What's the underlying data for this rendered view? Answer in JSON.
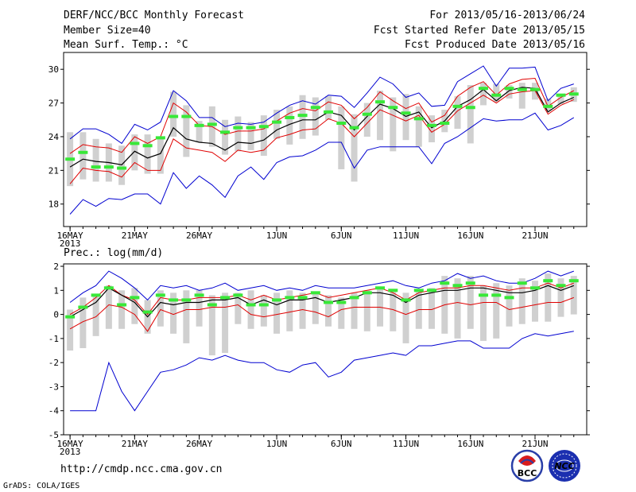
{
  "header": {
    "title": "DERF/NCC/BCC Monthly Forecast",
    "member_size": "Member Size=40",
    "variable": "Mean Surf. Temp.: °C",
    "period": "For 2013/05/16-2013/06/24",
    "started": "Fcst Started Refer Date 2013/05/15",
    "produced": "Fcst Produced Date 2013/05/16"
  },
  "footer": {
    "url": "http://cmdp.ncc.cma.gov.cn",
    "grads": "GrADS: COLA/IGES",
    "logo1_text": "BCC",
    "logo2_text": "NCC"
  },
  "colors": {
    "box": "#d0d0d0",
    "median": "#38e838",
    "mean": "#000000",
    "inner": "#e00000",
    "outer": "#0000d0"
  },
  "chart_data": [
    {
      "type": "line",
      "title": "Mean Surf. Temp.: °C",
      "ylabel": "°C",
      "ylim": [
        16,
        31.5
      ],
      "yticks": [
        18,
        21,
        24,
        27,
        30
      ],
      "xtick_labels": [
        "16MAY",
        "21MAY",
        "26MAY",
        "1JUN",
        "6JUN",
        "11JUN",
        "16JUN",
        "21JUN"
      ],
      "xtick_days": [
        0,
        5,
        10,
        16,
        21,
        26,
        31,
        36
      ],
      "year_label": "2013",
      "x_days": [
        0,
        1,
        2,
        3,
        4,
        5,
        6,
        7,
        8,
        9,
        10,
        11,
        12,
        13,
        14,
        15,
        16,
        17,
        18,
        19,
        20,
        21,
        22,
        23,
        24,
        25,
        26,
        27,
        28,
        29,
        30,
        31,
        32,
        33,
        34,
        35,
        36,
        37,
        38,
        39
      ],
      "series": [
        {
          "name": "max",
          "values": [
            23.8,
            24.7,
            24.7,
            24.2,
            23.4,
            25.1,
            24.6,
            25.3,
            28.1,
            27.2,
            25.7,
            25.7,
            24.9,
            25.2,
            25.1,
            25.3,
            26.1,
            26.8,
            27.2,
            26.9,
            27.7,
            27.6,
            26.6,
            27.9,
            29.3,
            28.7,
            27.5,
            27.9,
            26.7,
            26.8,
            28.9,
            29.6,
            30.3,
            28.5,
            30.1,
            30.1,
            30.2,
            27.2,
            28.3,
            28.7
          ]
        },
        {
          "name": "upper",
          "values": [
            22.5,
            23.3,
            23.1,
            23.0,
            22.6,
            24.0,
            23.4,
            24.0,
            27.0,
            26.2,
            25.0,
            24.9,
            24.2,
            24.5,
            24.5,
            24.7,
            25.4,
            26.1,
            26.5,
            26.3,
            27.1,
            26.8,
            25.6,
            26.6,
            28.0,
            27.2,
            26.5,
            27.0,
            25.3,
            25.9,
            27.6,
            28.4,
            28.9,
            27.7,
            28.7,
            29.1,
            29.2,
            26.7,
            27.5,
            28.1
          ]
        },
        {
          "name": "mean",
          "values": [
            21.3,
            22.0,
            21.8,
            21.7,
            21.5,
            22.7,
            22.1,
            22.5,
            24.8,
            23.8,
            23.5,
            23.4,
            22.8,
            23.5,
            23.4,
            23.7,
            24.6,
            25.1,
            25.5,
            25.5,
            26.2,
            25.9,
            24.6,
            25.8,
            26.9,
            26.5,
            25.8,
            26.2,
            24.8,
            25.4,
            26.7,
            27.3,
            28.2,
            27.2,
            28.1,
            28.4,
            28.3,
            26.2,
            27.0,
            27.5
          ]
        },
        {
          "name": "lower",
          "values": [
            19.8,
            21.2,
            21.0,
            20.9,
            20.4,
            21.7,
            21.0,
            21.0,
            23.8,
            23.0,
            22.8,
            22.6,
            21.8,
            22.8,
            22.6,
            22.8,
            23.9,
            24.2,
            24.6,
            24.7,
            25.6,
            25.2,
            24.0,
            25.2,
            26.4,
            25.9,
            25.4,
            25.9,
            24.4,
            25.1,
            26.3,
            27.0,
            27.7,
            27.0,
            27.8,
            28.0,
            28.1,
            26.0,
            26.8,
            27.3
          ]
        },
        {
          "name": "min",
          "values": [
            17.1,
            18.4,
            17.8,
            18.5,
            18.4,
            18.9,
            18.9,
            18.0,
            20.8,
            19.4,
            20.5,
            19.7,
            18.6,
            20.5,
            21.3,
            20.2,
            21.7,
            22.2,
            22.3,
            22.8,
            23.5,
            23.5,
            21.2,
            22.8,
            23.1,
            23.1,
            23.1,
            23.1,
            21.6,
            23.4,
            24.0,
            24.8,
            25.6,
            25.4,
            25.5,
            25.5,
            26.1,
            24.6,
            25.0,
            25.7
          ]
        },
        {
          "name": "median",
          "values": [
            22.0,
            22.6,
            21.3,
            21.3,
            21.2,
            23.4,
            23.2,
            23.9,
            25.8,
            25.8,
            25.0,
            25.1,
            24.4,
            24.8,
            24.8,
            24.9,
            25.3,
            25.7,
            25.9,
            26.6,
            26.2,
            25.2,
            24.8,
            26.0,
            27.1,
            26.6,
            26.1,
            25.6,
            25.0,
            25.2,
            26.7,
            26.6,
            28.3,
            27.7,
            28.3,
            28.2,
            28.2,
            26.7,
            27.7,
            27.8
          ]
        },
        {
          "name": "box_high",
          "values": [
            24.4,
            24.4,
            23.8,
            23.4,
            23.2,
            24.2,
            24.2,
            24.0,
            28.0,
            26.8,
            25.4,
            26.7,
            25.5,
            25.8,
            25.3,
            25.9,
            26.4,
            26.7,
            27.7,
            27.5,
            27.6,
            26.7,
            26.0,
            27.0,
            28.1,
            27.5,
            27.8,
            26.7,
            25.9,
            26.4,
            27.6,
            28.6,
            28.8,
            28.7,
            28.6,
            28.8,
            28.8,
            27.4,
            27.8,
            28.4
          ]
        },
        {
          "name": "box_low",
          "values": [
            19.6,
            20.2,
            20.0,
            20.0,
            19.7,
            21.0,
            20.7,
            20.7,
            24.0,
            22.2,
            23.5,
            23.1,
            22.4,
            22.7,
            22.8,
            22.3,
            23.8,
            23.3,
            23.8,
            24.1,
            25.5,
            21.1,
            20.0,
            24.0,
            23.7,
            22.7,
            23.7,
            23.1,
            23.5,
            24.4,
            24.7,
            23.4,
            26.8,
            27.1,
            27.4,
            26.5,
            27.3,
            26.3,
            26.9,
            27.1
          ]
        }
      ]
    },
    {
      "type": "line",
      "title": "Prec.: log(mm/d)",
      "ylabel": "log(mm/d)",
      "ylim": [
        -5,
        2.1
      ],
      "yticks": [
        -5,
        -4,
        -3,
        -2,
        -1,
        0,
        1,
        2
      ],
      "xtick_labels": [
        "16MAY",
        "21MAY",
        "26MAY",
        "1JUN",
        "6JUN",
        "11JUN",
        "16JUN",
        "21JUN"
      ],
      "xtick_days": [
        0,
        5,
        10,
        16,
        21,
        26,
        31,
        36
      ],
      "year_label": "2013",
      "x_days": [
        0,
        1,
        2,
        3,
        4,
        5,
        6,
        7,
        8,
        9,
        10,
        11,
        12,
        13,
        14,
        15,
        16,
        17,
        18,
        19,
        20,
        21,
        22,
        23,
        24,
        25,
        26,
        27,
        28,
        29,
        30,
        31,
        32,
        33,
        34,
        35,
        36,
        37,
        38,
        39
      ],
      "series": [
        {
          "name": "max",
          "values": [
            0.5,
            0.9,
            1.2,
            1.8,
            1.5,
            1.1,
            0.6,
            1.2,
            1.1,
            1.2,
            1.0,
            1.1,
            1.3,
            1.0,
            1.1,
            1.2,
            1.0,
            1.1,
            1.0,
            1.2,
            1.1,
            1.1,
            1.1,
            1.2,
            1.3,
            1.4,
            1.2,
            1.1,
            1.3,
            1.4,
            1.7,
            1.5,
            1.6,
            1.4,
            1.3,
            1.3,
            1.5,
            1.8,
            1.6,
            1.8
          ]
        },
        {
          "name": "upper",
          "values": [
            0.0,
            0.3,
            0.7,
            1.2,
            0.8,
            0.6,
            0.0,
            0.7,
            0.6,
            0.6,
            0.7,
            0.7,
            0.7,
            0.8,
            0.6,
            0.8,
            0.6,
            0.7,
            0.8,
            0.9,
            0.7,
            0.8,
            0.9,
            1.0,
            1.1,
            0.9,
            0.6,
            0.9,
            1.0,
            1.1,
            1.1,
            1.2,
            1.2,
            1.1,
            1.0,
            1.1,
            1.1,
            1.3,
            1.1,
            1.3
          ]
        },
        {
          "name": "mean",
          "values": [
            -0.1,
            0.2,
            0.5,
            1.1,
            0.8,
            0.5,
            -0.1,
            0.5,
            0.4,
            0.5,
            0.5,
            0.6,
            0.6,
            0.7,
            0.4,
            0.6,
            0.4,
            0.6,
            0.6,
            0.7,
            0.5,
            0.6,
            0.7,
            0.9,
            0.9,
            0.8,
            0.5,
            0.8,
            0.9,
            1.0,
            1.0,
            1.1,
            1.1,
            1.0,
            0.9,
            0.9,
            1.0,
            1.2,
            1.0,
            1.2
          ]
        },
        {
          "name": "lower",
          "values": [
            -0.6,
            -0.3,
            -0.1,
            0.4,
            0.3,
            0.0,
            -0.7,
            0.2,
            0.0,
            0.2,
            0.2,
            0.3,
            0.3,
            0.4,
            0.0,
            -0.1,
            0.0,
            0.1,
            0.2,
            0.1,
            -0.1,
            0.2,
            0.3,
            0.3,
            0.3,
            0.2,
            0.0,
            0.2,
            0.2,
            0.4,
            0.5,
            0.4,
            0.5,
            0.5,
            0.2,
            0.3,
            0.4,
            0.5,
            0.5,
            0.7
          ]
        },
        {
          "name": "min",
          "values": [
            -4.0,
            -4.0,
            -4.0,
            -2.0,
            -3.2,
            -4.0,
            -3.2,
            -2.4,
            -2.3,
            -2.1,
            -1.8,
            -1.9,
            -1.7,
            -1.9,
            -2.0,
            -2.0,
            -2.3,
            -2.4,
            -2.1,
            -2.0,
            -2.6,
            -2.4,
            -1.9,
            -1.8,
            -1.7,
            -1.6,
            -1.7,
            -1.3,
            -1.3,
            -1.2,
            -1.1,
            -1.1,
            -1.4,
            -1.4,
            -1.4,
            -1.0,
            -0.8,
            -0.9,
            -0.8,
            -0.7
          ]
        },
        {
          "name": "median",
          "values": [
            -0.1,
            0.3,
            0.8,
            1.1,
            0.4,
            0.7,
            0.1,
            0.8,
            0.6,
            0.6,
            0.8,
            0.4,
            0.7,
            0.8,
            0.4,
            0.4,
            0.6,
            0.7,
            0.7,
            0.9,
            0.5,
            0.5,
            0.7,
            0.9,
            1.1,
            1.0,
            0.6,
            1.0,
            1.0,
            1.3,
            1.2,
            1.3,
            0.8,
            0.8,
            0.7,
            1.3,
            1.1,
            1.4,
            1.2,
            1.4
          ]
        },
        {
          "name": "box_high",
          "values": [
            0.2,
            0.7,
            0.8,
            1.2,
            1.0,
            1.1,
            0.6,
            1.0,
            0.9,
            1.0,
            1.0,
            0.8,
            0.9,
            0.9,
            1.0,
            0.8,
            0.9,
            1.0,
            0.9,
            0.9,
            0.8,
            0.7,
            0.9,
            1.0,
            1.1,
            1.0,
            0.9,
            1.0,
            1.1,
            1.6,
            1.5,
            1.6,
            1.2,
            1.3,
            1.2,
            1.5,
            1.4,
            1.7,
            1.5,
            1.6
          ]
        },
        {
          "name": "box_low",
          "values": [
            -1.5,
            -1.4,
            -0.9,
            -0.6,
            -0.6,
            -0.4,
            -0.8,
            -0.5,
            -0.8,
            -1.2,
            -0.5,
            -1.7,
            -1.6,
            -0.4,
            -0.6,
            -0.5,
            -0.8,
            -0.7,
            -0.6,
            -0.4,
            -0.5,
            -0.6,
            -0.6,
            -0.7,
            -0.5,
            -0.7,
            -1.2,
            -0.6,
            -0.6,
            -0.8,
            -1.0,
            -0.6,
            -1.1,
            -1.0,
            -0.5,
            -0.4,
            -0.3,
            -0.3,
            -0.1,
            0.0
          ]
        }
      ]
    }
  ]
}
